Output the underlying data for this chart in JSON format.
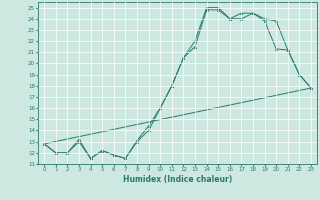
{
  "xlabel": "Humidex (Indice chaleur)",
  "xlim": [
    -0.5,
    23.5
  ],
  "ylim": [
    11,
    25.5
  ],
  "yticks": [
    11,
    12,
    13,
    14,
    15,
    16,
    17,
    18,
    19,
    20,
    21,
    22,
    23,
    24,
    25
  ],
  "xticks": [
    0,
    1,
    2,
    3,
    4,
    5,
    6,
    7,
    8,
    9,
    10,
    11,
    12,
    13,
    14,
    15,
    16,
    17,
    18,
    19,
    20,
    21,
    22,
    23
  ],
  "bg_color": "#cce8e0",
  "line_color": "#2a7a6a",
  "grid_color": "#ffffff",
  "series1_x": [
    0,
    1,
    2,
    3,
    4,
    5,
    6,
    7,
    8,
    9,
    10,
    11,
    12,
    13,
    14,
    15,
    16,
    17,
    18,
    19,
    20,
    21,
    22,
    23
  ],
  "series1_y": [
    12.8,
    12.0,
    12.0,
    13.0,
    11.5,
    12.2,
    11.8,
    11.5,
    13.0,
    14.0,
    16.0,
    18.0,
    20.5,
    21.5,
    24.8,
    24.8,
    24.0,
    24.5,
    24.5,
    23.8,
    21.3,
    21.2,
    19.0,
    17.8
  ],
  "series2_x": [
    0,
    1,
    2,
    3,
    4,
    5,
    6,
    7,
    8,
    9,
    10,
    11,
    12,
    13,
    14,
    15,
    16,
    17,
    18,
    19,
    20,
    21,
    22,
    23
  ],
  "series2_y": [
    12.8,
    12.0,
    12.0,
    13.2,
    11.5,
    12.2,
    11.8,
    11.5,
    13.1,
    14.4,
    16.0,
    18.0,
    20.5,
    22.0,
    25.0,
    25.0,
    24.0,
    24.0,
    24.5,
    24.0,
    23.8,
    21.2,
    19.0,
    17.8
  ],
  "series3_x": [
    0,
    23
  ],
  "series3_y": [
    12.8,
    17.8
  ]
}
